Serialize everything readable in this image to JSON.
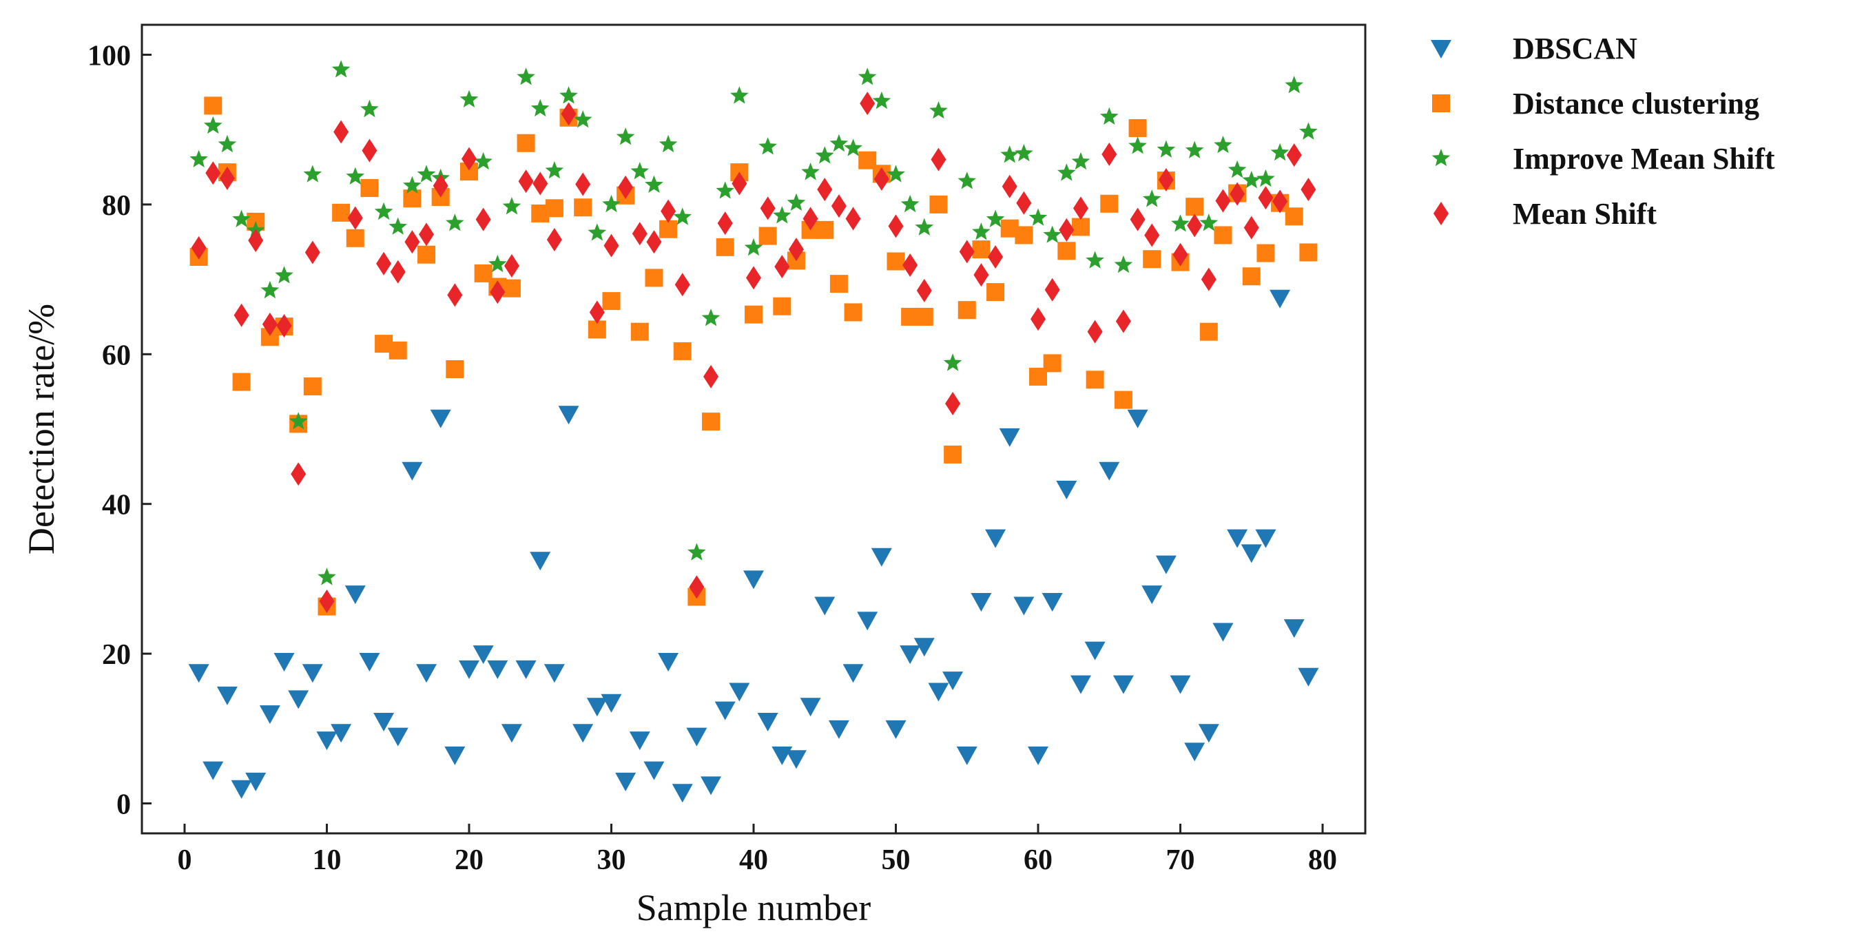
{
  "chart_data": {
    "type": "scatter",
    "title": "",
    "xlabel": "Sample number",
    "ylabel": "Detection rate/%",
    "xlim": [
      -3,
      83
    ],
    "ylim": [
      -4,
      104
    ],
    "xticks": [
      0,
      10,
      20,
      30,
      40,
      50,
      60,
      70,
      80
    ],
    "yticks": [
      0,
      20,
      40,
      60,
      80,
      100
    ],
    "grid": false,
    "legend_position": "outside-right-top",
    "series": [
      {
        "name": "DBSCAN",
        "marker": "triangle-down",
        "color": "#1f77b4",
        "x": [
          1,
          2,
          3,
          4,
          5,
          6,
          7,
          8,
          9,
          10,
          11,
          12,
          13,
          14,
          15,
          16,
          17,
          18,
          19,
          20,
          21,
          22,
          23,
          24,
          25,
          26,
          27,
          28,
          29,
          30,
          31,
          32,
          33,
          34,
          35,
          36,
          37,
          38,
          39,
          40,
          41,
          42,
          43,
          44,
          45,
          46,
          47,
          48,
          49,
          50,
          51,
          52,
          53,
          54,
          55,
          56,
          57,
          58,
          59,
          60,
          61,
          62,
          63,
          64,
          65,
          66,
          67,
          68,
          69,
          70,
          71,
          72,
          73,
          74,
          75,
          76,
          77,
          78,
          79
        ],
        "y": [
          17.5,
          4.5,
          14.5,
          2,
          3,
          12,
          19,
          14,
          17.5,
          8.5,
          9.5,
          28,
          19,
          11,
          9,
          44.5,
          17.5,
          51.5,
          6.5,
          18,
          20,
          18,
          9.5,
          18,
          32.5,
          17.5,
          52,
          9.5,
          13,
          13.5,
          3,
          8.5,
          4.5,
          19,
          1.5,
          9,
          2.5,
          12.5,
          15,
          30,
          11,
          6.5,
          6,
          13,
          26.5,
          10,
          17.5,
          24.5,
          33,
          10,
          20,
          21,
          15,
          16.5,
          6.5,
          27,
          35.5,
          49,
          26.5,
          6.5,
          27,
          42,
          16,
          20.5,
          44.5,
          16,
          51.5,
          28,
          32,
          16,
          7,
          9.5,
          23,
          35.5,
          33.5,
          35.5,
          67.5,
          23.5,
          17
        ]
      },
      {
        "name": "Distance clustering",
        "marker": "square",
        "color": "#ff7f0e",
        "x": [
          1,
          2,
          3,
          4,
          5,
          6,
          7,
          8,
          9,
          10,
          11,
          12,
          13,
          14,
          15,
          16,
          17,
          18,
          19,
          20,
          21,
          22,
          23,
          24,
          25,
          26,
          27,
          28,
          29,
          30,
          31,
          32,
          33,
          34,
          35,
          36,
          37,
          38,
          39,
          40,
          41,
          42,
          43,
          44,
          45,
          46,
          47,
          48,
          49,
          50,
          51,
          52,
          53,
          54,
          55,
          56,
          57,
          58,
          59,
          60,
          61,
          62,
          63,
          64,
          65,
          66,
          67,
          68,
          69,
          70,
          71,
          72,
          73,
          74,
          75,
          76,
          77,
          78,
          79
        ],
        "y": [
          73,
          93.2,
          84.3,
          56.3,
          77.7,
          62.3,
          63.7,
          50.7,
          55.7,
          26.3,
          78.9,
          75.5,
          82.2,
          61.4,
          60.5,
          80.8,
          73.3,
          81,
          58,
          84.4,
          70.8,
          69,
          68.8,
          88.2,
          78.8,
          79.5,
          91.6,
          79.6,
          63.3,
          67.1,
          81.2,
          63,
          70.2,
          76.7,
          60.4,
          27.6,
          51,
          74.3,
          84.3,
          65.3,
          75.8,
          66.4,
          72.5,
          76.6,
          76.6,
          69.4,
          65.6,
          85.9,
          84.1,
          72.4,
          65,
          65,
          80,
          46.6,
          65.9,
          74,
          68.3,
          76.8,
          75.9,
          57,
          58.8,
          73.8,
          77,
          56.6,
          80.1,
          53.9,
          90.2,
          72.7,
          83.2,
          72.3,
          79.7,
          63,
          75.9,
          81.5,
          70.4,
          73.5,
          80.2,
          78.4,
          73.6
        ]
      },
      {
        "name": "Improve Mean Shift",
        "marker": "star",
        "color": "#2ca02c",
        "x": [
          1,
          2,
          3,
          4,
          5,
          6,
          7,
          8,
          9,
          10,
          11,
          12,
          13,
          14,
          15,
          16,
          17,
          18,
          19,
          20,
          21,
          22,
          23,
          24,
          25,
          26,
          27,
          28,
          29,
          30,
          31,
          32,
          33,
          34,
          35,
          36,
          37,
          38,
          39,
          40,
          41,
          42,
          43,
          44,
          45,
          46,
          47,
          48,
          49,
          50,
          51,
          52,
          53,
          54,
          55,
          56,
          57,
          58,
          59,
          60,
          61,
          62,
          63,
          64,
          65,
          66,
          67,
          68,
          69,
          70,
          71,
          72,
          73,
          74,
          75,
          76,
          77,
          78,
          79
        ],
        "y": [
          86,
          90.5,
          88,
          78,
          76.5,
          68.5,
          70.5,
          51,
          84,
          30.2,
          98,
          83.7,
          92.7,
          79,
          77,
          82.5,
          84,
          83.5,
          77.5,
          94,
          85.7,
          72,
          79.7,
          97,
          92.8,
          84.5,
          94.5,
          91.3,
          76.2,
          80,
          89,
          84.4,
          82.6,
          88,
          78.3,
          33.5,
          64.8,
          81.8,
          94.5,
          74.2,
          87.7,
          78.5,
          80.2,
          84.3,
          86.5,
          88.1,
          87.5,
          97,
          93.8,
          84,
          80,
          76.9,
          92.5,
          58.8,
          83.1,
          76.3,
          78,
          86.6,
          86.8,
          78.2,
          75.9,
          84.2,
          85.7,
          72.5,
          91.7,
          71.9,
          87.8,
          80.7,
          87.3,
          77.4,
          87.2,
          77.5,
          87.9,
          84.6,
          83.2,
          83.4,
          86.9,
          95.9,
          89.7
        ]
      },
      {
        "name": "Mean Shift",
        "marker": "diamond",
        "color": "#e8262a",
        "x": [
          1,
          2,
          3,
          4,
          5,
          6,
          7,
          8,
          9,
          10,
          11,
          12,
          13,
          14,
          15,
          16,
          17,
          18,
          19,
          20,
          21,
          22,
          23,
          24,
          25,
          26,
          27,
          28,
          29,
          30,
          31,
          32,
          33,
          34,
          35,
          36,
          37,
          38,
          39,
          40,
          41,
          42,
          43,
          44,
          45,
          46,
          47,
          48,
          49,
          50,
          51,
          52,
          53,
          54,
          55,
          56,
          57,
          58,
          59,
          60,
          61,
          62,
          63,
          64,
          65,
          66,
          67,
          68,
          69,
          70,
          71,
          72,
          73,
          74,
          75,
          76,
          77,
          78,
          79
        ],
        "y": [
          74.2,
          84.2,
          83.5,
          65.2,
          75.2,
          64,
          63.8,
          44,
          73.6,
          27,
          89.7,
          78.2,
          87.2,
          72.1,
          71,
          75,
          76,
          82.5,
          67.9,
          86.1,
          78,
          68.3,
          71.8,
          83.1,
          82.8,
          75.3,
          92.1,
          82.7,
          65.6,
          74.5,
          82.3,
          76.1,
          75,
          79.1,
          69.3,
          28.9,
          57,
          77.5,
          82.8,
          70.2,
          79.5,
          71.7,
          74,
          78.1,
          82,
          79.8,
          78.1,
          93.5,
          83.4,
          77.1,
          71.9,
          68.5,
          86,
          53.4,
          73.7,
          70.6,
          73,
          82.4,
          80.2,
          64.7,
          68.6,
          76.6,
          79.5,
          63,
          86.7,
          64.4,
          78,
          75.9,
          83.3,
          73.3,
          77.2,
          70,
          80.5,
          81.4,
          76.9,
          80.9,
          80.4,
          86.6,
          82
        ]
      }
    ]
  }
}
